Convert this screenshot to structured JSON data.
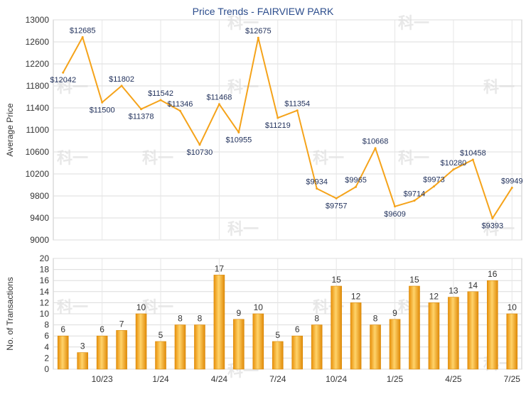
{
  "chart_data": [
    {
      "type": "line",
      "title": "Price Trends - FAIRVIEW PARK",
      "ylabel": "Average Price",
      "ylim": [
        9000,
        13000
      ],
      "yticks": [
        9000,
        9400,
        9800,
        10200,
        10600,
        11000,
        11400,
        11800,
        12200,
        12600,
        13000
      ],
      "grid": true,
      "values": [
        12042,
        12685,
        11500,
        11802,
        11378,
        11542,
        11346,
        10730,
        11468,
        10955,
        12675,
        11219,
        11354,
        9934,
        9757,
        9965,
        10668,
        9609,
        9714,
        9973,
        10280,
        10458,
        9393,
        9949
      ],
      "data_labels": [
        "$12042",
        "$12685",
        "$11500",
        "$11802",
        "$11378",
        "$11542",
        "$11346",
        "$10730",
        "$11468",
        "$10955",
        "$12675",
        "$11219",
        "$11354",
        "$9934",
        "$9757",
        "$9965",
        "$10668",
        "$9609",
        "$9714",
        "$9973",
        "$10280",
        "$10458",
        "$9393",
        "$9949"
      ],
      "color": "#f5a31a"
    },
    {
      "type": "bar",
      "ylabel": "No. of Transactions",
      "ylim": [
        0,
        20
      ],
      "yticks": [
        0,
        2,
        4,
        6,
        8,
        10,
        12,
        14,
        16,
        18,
        20
      ],
      "grid": true,
      "values": [
        6,
        3,
        6,
        7,
        10,
        5,
        8,
        8,
        17,
        9,
        10,
        5,
        6,
        8,
        15,
        12,
        8,
        9,
        15,
        12,
        13,
        14,
        16,
        10
      ],
      "xtick_labels": [
        {
          "index": 2,
          "label": "10/23"
        },
        {
          "index": 5,
          "label": "1/24"
        },
        {
          "index": 8,
          "label": "4/24"
        },
        {
          "index": 11,
          "label": "7/24"
        },
        {
          "index": 14,
          "label": "10/24"
        },
        {
          "index": 17,
          "label": "1/25"
        },
        {
          "index": 20,
          "label": "4/25"
        },
        {
          "index": 23,
          "label": "7/25"
        }
      ],
      "color": "#f5a31a"
    }
  ],
  "watermark": "科一"
}
